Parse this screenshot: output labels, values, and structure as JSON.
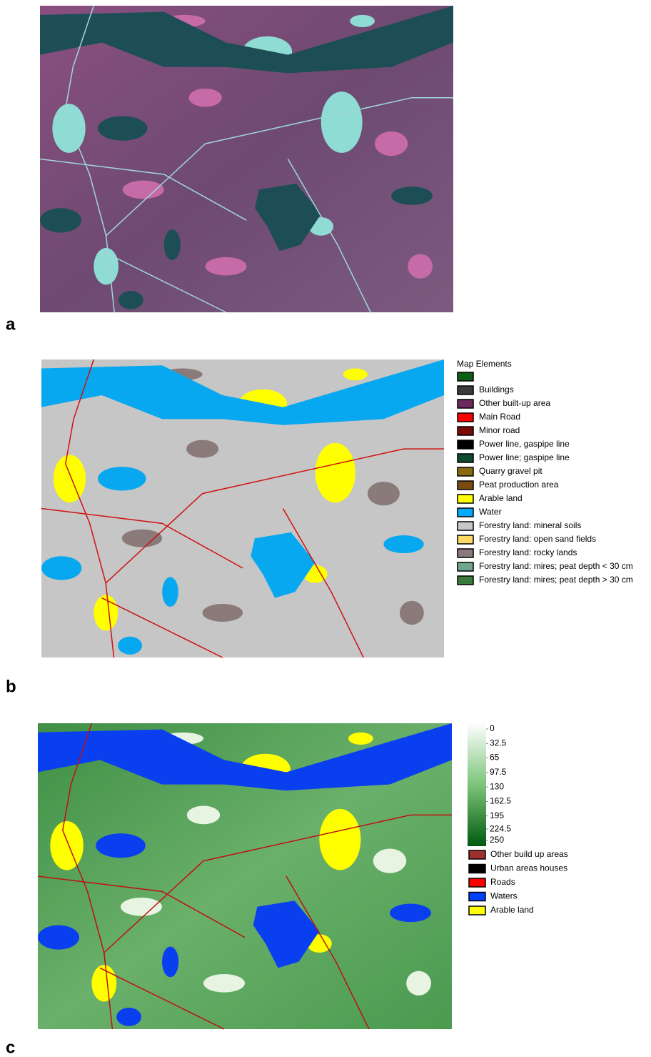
{
  "panels": [
    {
      "label": "a"
    },
    {
      "label": "b",
      "legend": {
        "title": "Map Elements",
        "items": [
          {
            "label": null,
            "color": "#0b5e16"
          },
          {
            "label": "Buildings",
            "color": "#3a3a3a"
          },
          {
            "label": "Other built-up area",
            "color": "#6b2a5e"
          },
          {
            "label": "Main Road",
            "color": "#ff0000"
          },
          {
            "label": "Minor road",
            "color": "#7a0a0a"
          },
          {
            "label": "Power line, gaspipe line",
            "color": "#000000"
          },
          {
            "label": "Power line; gaspipe line",
            "color": "#0e4a2e"
          },
          {
            "label": "Quarry gravel pit",
            "color": "#8a6a10"
          },
          {
            "label": "Peat production area",
            "color": "#7a4a10"
          },
          {
            "label": "Arable land",
            "color": "#ffff00"
          },
          {
            "label": "Water",
            "color": "#00aaff"
          },
          {
            "label": "Forestry land: mineral soils",
            "color": "#c8c8c8"
          },
          {
            "label": "Forestry land: open sand fields",
            "color": "#ffd966"
          },
          {
            "label": "Forestry land: rocky lands",
            "color": "#8a7a7a"
          },
          {
            "label": "Forestry land: mires; peat depth < 30 cm",
            "color": "#6fa58a"
          },
          {
            "label": "Forestry land: mires; peat depth > 30 cm",
            "color": "#3a7a3a"
          }
        ]
      }
    },
    {
      "label": "c",
      "colorbar": {
        "ticks": [
          0,
          32.5,
          65,
          97.5,
          130,
          162.5,
          195,
          224.5,
          250
        ]
      },
      "legend": {
        "items": [
          {
            "label": "Other build up areas",
            "color": "#a03030"
          },
          {
            "label": "Urban areas houses",
            "color": "#000000"
          },
          {
            "label": "Roads",
            "color": "#ff0000"
          },
          {
            "label": "Waters",
            "color": "#0040ff"
          },
          {
            "label": "Arable land",
            "color": "#ffff00"
          }
        ]
      }
    }
  ]
}
